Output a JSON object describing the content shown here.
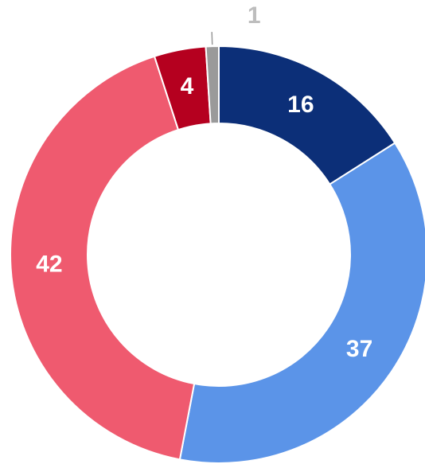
{
  "chart_data": {
    "type": "pie",
    "donut": true,
    "values": [
      16,
      37,
      42,
      4,
      1
    ],
    "colors": [
      "#0c2f78",
      "#5b94e8",
      "#ef5a6f",
      "#b5001f",
      "#9a9a9a"
    ]
  }
}
